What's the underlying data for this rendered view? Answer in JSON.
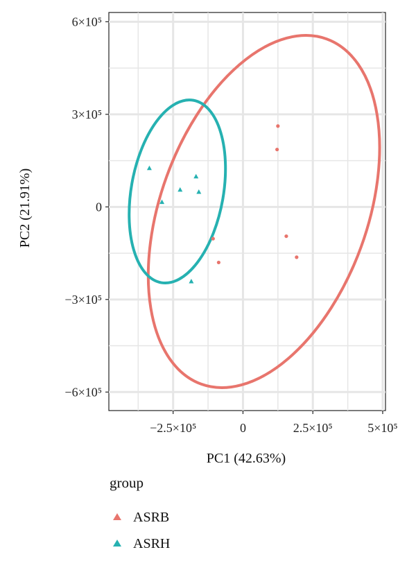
{
  "chart_data": {
    "type": "scatter",
    "xlabel": "PC1 (42.63%)",
    "ylabel": "PC2 (21.91%)",
    "xlim": [
      -480000,
      510000
    ],
    "ylim": [
      -660000,
      630000
    ],
    "x_ticks": [
      {
        "value": -250000,
        "label": "−2.5×10⁵"
      },
      {
        "value": 0,
        "label": "0"
      },
      {
        "value": 250000,
        "label": "2.5×10⁵"
      },
      {
        "value": 500000,
        "label": "5×10⁵"
      }
    ],
    "y_ticks": [
      {
        "value": 600000,
        "label": "6×10⁵"
      },
      {
        "value": 300000,
        "label": "3×10⁵"
      },
      {
        "value": 0,
        "label": "0"
      },
      {
        "value": -300000,
        "label": "−3×10⁵"
      },
      {
        "value": -600000,
        "label": "−6×10⁵"
      }
    ],
    "grid": true,
    "legend_position": "bottom",
    "legend_title": "group",
    "series": [
      {
        "name": "ASRB",
        "color": "#e8756d",
        "marker": "dot",
        "points": [
          {
            "x": 125000,
            "y": 262000
          },
          {
            "x": 122000,
            "y": 186000
          },
          {
            "x": 155000,
            "y": -95000
          },
          {
            "x": 192000,
            "y": -163000
          },
          {
            "x": -107000,
            "y": -103000
          },
          {
            "x": -87000,
            "y": -180000
          }
        ],
        "ellipse": {
          "cx": 75000,
          "cy": -15000,
          "rx": 370000,
          "ry": 595000,
          "rotate_deg": 20
        }
      },
      {
        "name": "ASRH",
        "color": "#26b1b1",
        "marker": "triangle",
        "points": [
          {
            "x": -335000,
            "y": 125000
          },
          {
            "x": -290000,
            "y": 15000
          },
          {
            "x": -225000,
            "y": 55000
          },
          {
            "x": -168000,
            "y": 98000
          },
          {
            "x": -158000,
            "y": 48000
          },
          {
            "x": -185000,
            "y": -242000
          }
        ],
        "ellipse": {
          "cx": -235000,
          "cy": 50000,
          "rx": 165000,
          "ry": 300000,
          "rotate_deg": 10
        }
      }
    ]
  }
}
